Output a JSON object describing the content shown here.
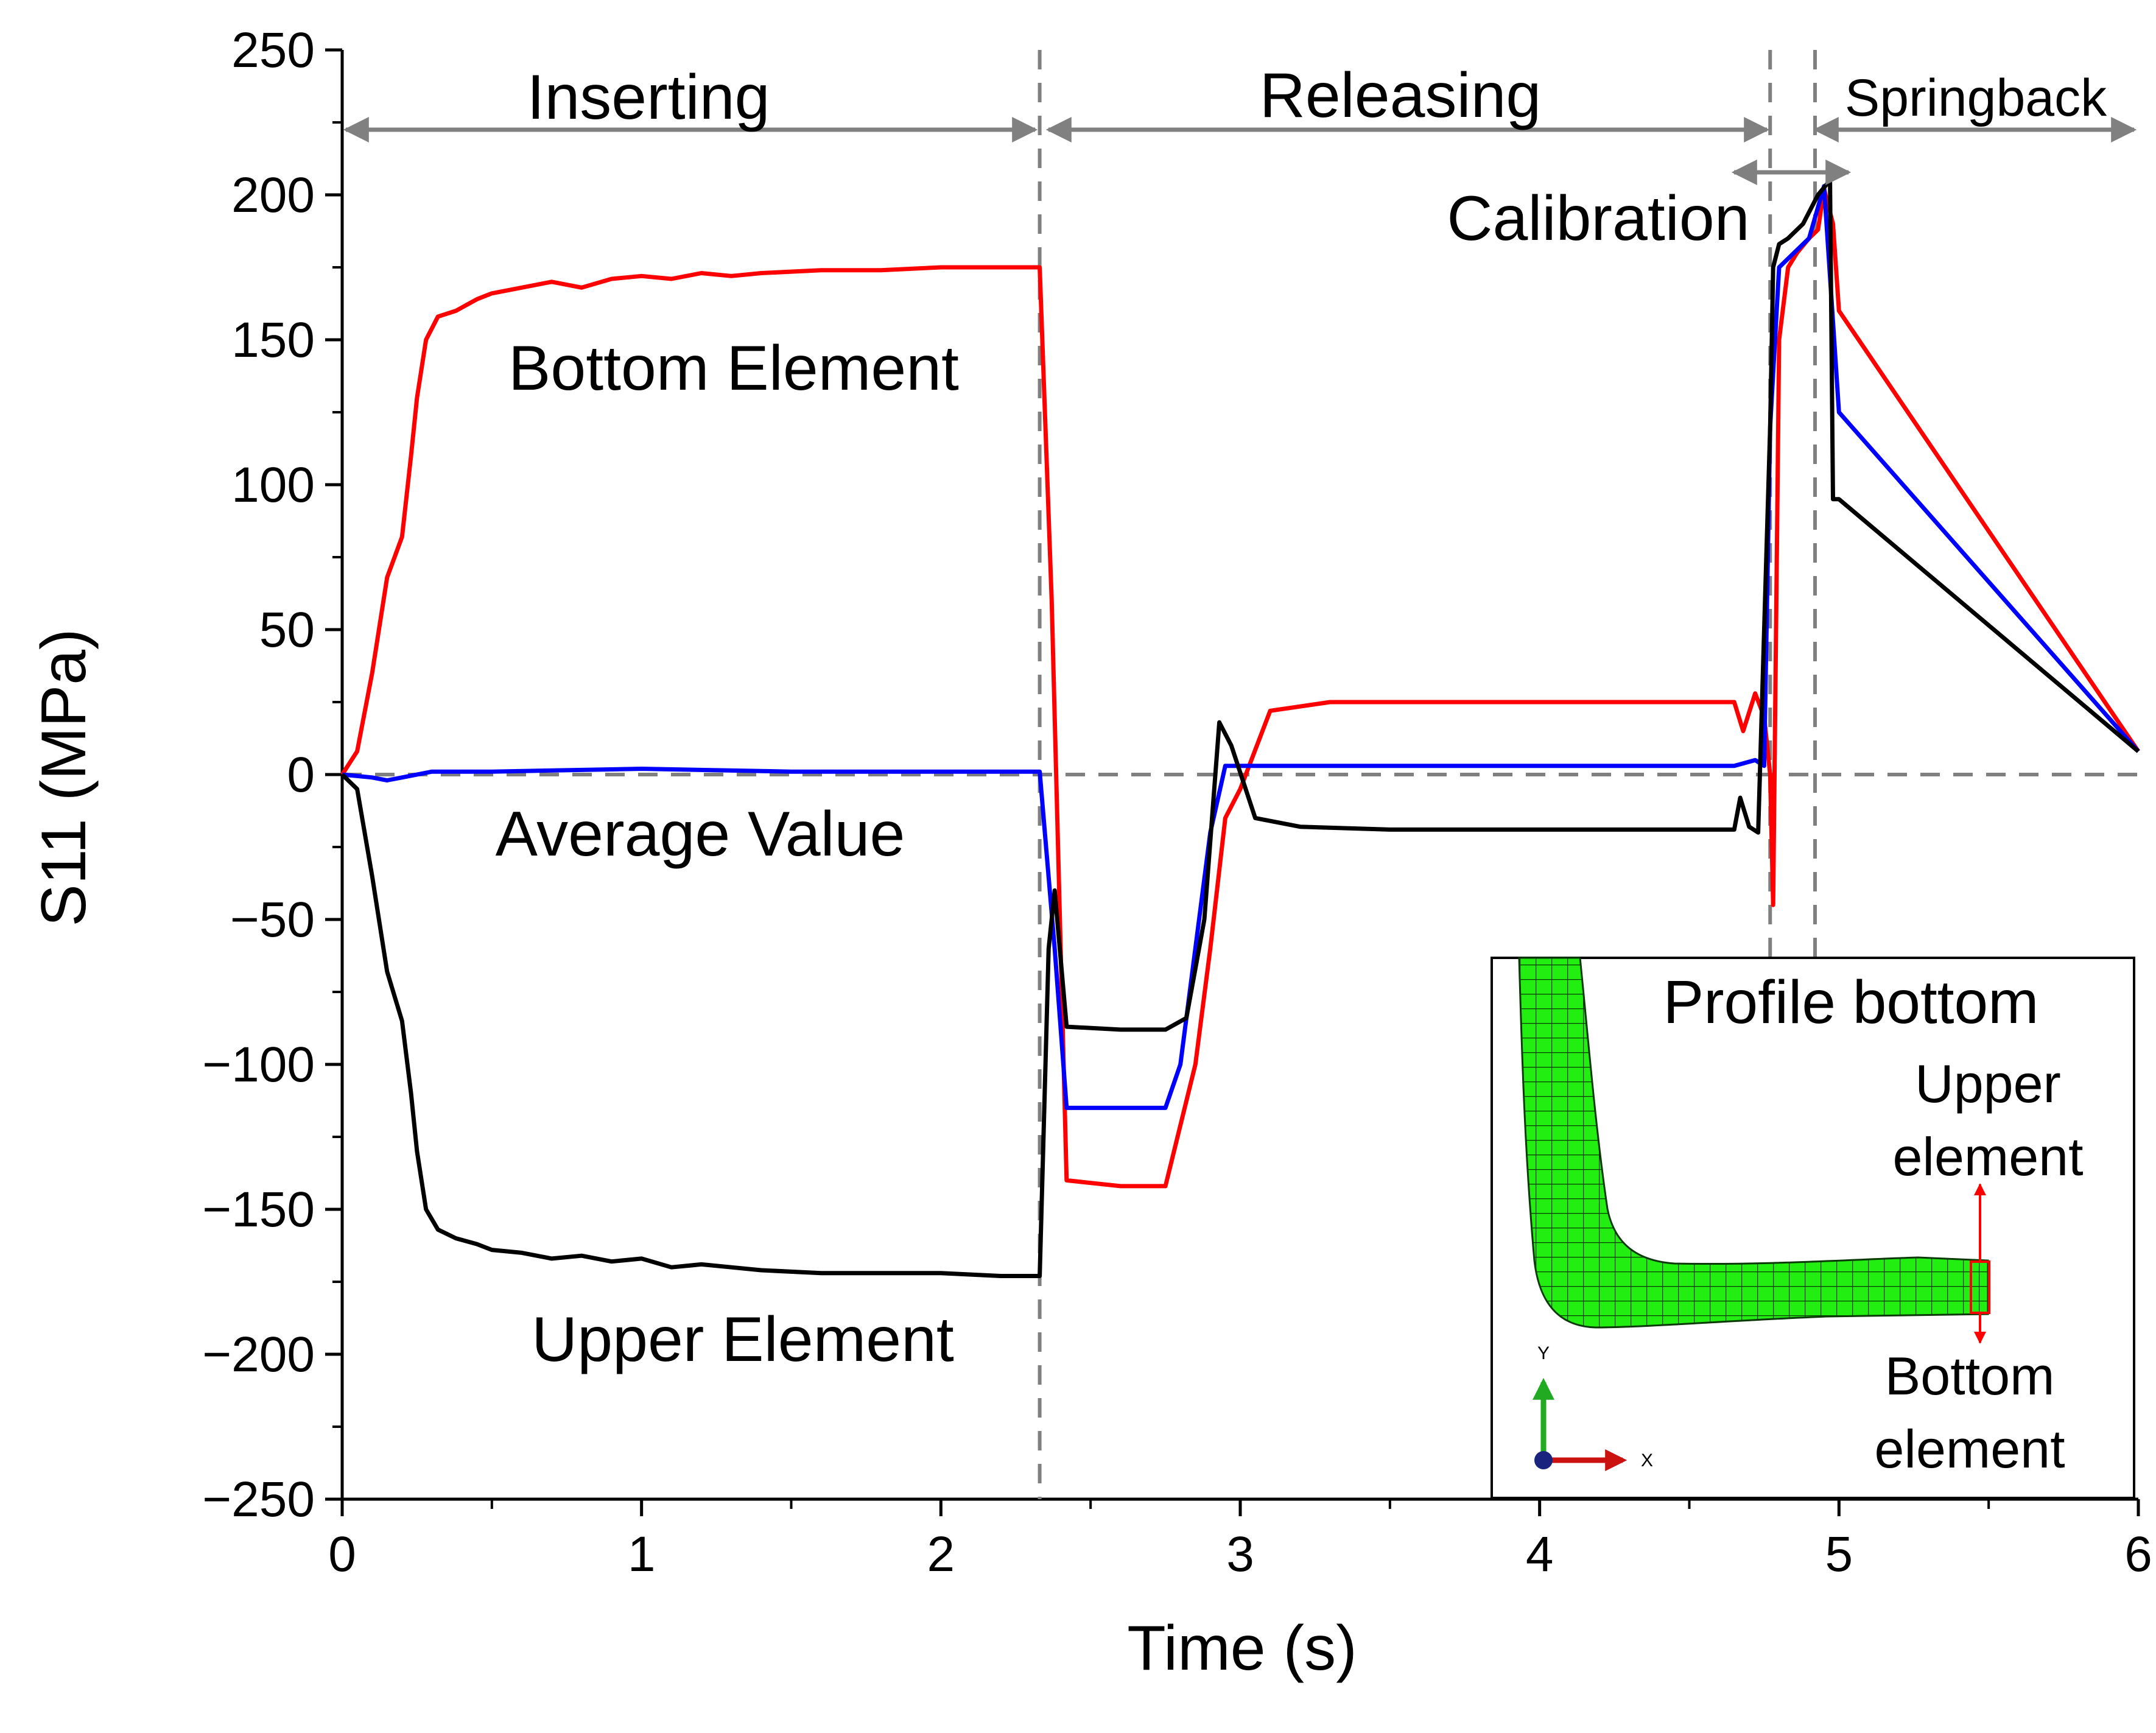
{
  "chart_data": {
    "type": "line",
    "title": "",
    "xlabel": "Time (s)",
    "ylabel": "S11 (MPa)",
    "xlim": [
      0,
      6
    ],
    "ylim": [
      -250,
      250
    ],
    "xticks": [
      "0",
      "1",
      "2",
      "3",
      "4",
      "5",
      "6"
    ],
    "yticks": [
      "250",
      "200",
      "150",
      "100",
      "50",
      "0",
      "−50",
      "−100",
      "−150",
      "−200",
      "−250"
    ],
    "phase_boundaries": [
      2.33,
      4.77,
      4.92
    ],
    "phases": [
      "Inserting",
      "Releasing",
      "Calibration",
      "Springback"
    ],
    "zero_line": 0,
    "annotations": {
      "bottom": "Bottom Element",
      "average": "Average Value",
      "upper": "Upper Element"
    },
    "series": [
      {
        "name": "Bottom Element",
        "color": "#ff0000",
        "x": [
          0,
          0.05,
          0.1,
          0.15,
          0.2,
          0.23,
          0.25,
          0.28,
          0.32,
          0.38,
          0.45,
          0.5,
          0.6,
          0.7,
          0.8,
          0.9,
          1.0,
          1.1,
          1.2,
          1.3,
          1.4,
          1.6,
          1.8,
          2.0,
          2.2,
          2.33,
          2.37,
          2.42,
          2.6,
          2.75,
          2.85,
          2.9,
          2.95,
          3.0,
          3.1,
          3.3,
          3.6,
          4.0,
          4.4,
          4.65,
          4.68,
          4.72,
          4.75,
          4.77,
          4.78,
          4.8,
          4.83,
          4.86,
          4.9,
          4.93,
          4.95,
          4.98,
          5.0,
          6.0
        ],
        "y": [
          0,
          8,
          35,
          68,
          82,
          110,
          130,
          150,
          158,
          160,
          164,
          166,
          168,
          170,
          168,
          171,
          172,
          171,
          173,
          172,
          173,
          174,
          174,
          175,
          175,
          175,
          60,
          -140,
          -142,
          -142,
          -100,
          -60,
          -15,
          -5,
          22,
          25,
          25,
          25,
          25,
          25,
          15,
          28,
          20,
          0,
          -45,
          150,
          175,
          180,
          185,
          188,
          202,
          190,
          160,
          8
        ]
      },
      {
        "name": "Average Value",
        "color": "#0000ff",
        "x": [
          0,
          0.1,
          0.15,
          0.2,
          0.3,
          0.5,
          1.0,
          1.5,
          2.0,
          2.33,
          2.38,
          2.42,
          2.6,
          2.75,
          2.8,
          2.9,
          2.95,
          3.0,
          3.5,
          4.0,
          4.6,
          4.65,
          4.72,
          4.75,
          4.77,
          4.8,
          4.85,
          4.9,
          4.95,
          5.0,
          6.0
        ],
        "y": [
          0,
          -1,
          -2,
          -1,
          1,
          1,
          2,
          1,
          1,
          1,
          -60,
          -115,
          -115,
          -115,
          -100,
          -20,
          3,
          3,
          3,
          3,
          3,
          3,
          5,
          3,
          120,
          175,
          180,
          185,
          203,
          125,
          8
        ]
      },
      {
        "name": "Upper Element",
        "color": "#000000",
        "x": [
          0,
          0.05,
          0.1,
          0.15,
          0.2,
          0.23,
          0.25,
          0.28,
          0.32,
          0.38,
          0.45,
          0.5,
          0.6,
          0.7,
          0.8,
          0.9,
          1.0,
          1.1,
          1.2,
          1.3,
          1.4,
          1.6,
          1.8,
          2.0,
          2.2,
          2.33,
          2.36,
          2.38,
          2.42,
          2.6,
          2.75,
          2.82,
          2.88,
          2.93,
          2.97,
          3.05,
          3.2,
          3.5,
          4.0,
          4.4,
          4.65,
          4.67,
          4.7,
          4.73,
          4.77,
          4.78,
          4.8,
          4.83,
          4.88,
          4.93,
          4.97,
          4.98,
          5.0,
          6.0
        ],
        "y": [
          0,
          -5,
          -35,
          -68,
          -85,
          -110,
          -130,
          -150,
          -157,
          -160,
          -162,
          -164,
          -165,
          -167,
          -166,
          -168,
          -167,
          -170,
          -169,
          -170,
          -171,
          -172,
          -172,
          -172,
          -173,
          -173,
          -60,
          -40,
          -87,
          -88,
          -88,
          -84,
          -50,
          18,
          10,
          -15,
          -18,
          -19,
          -19,
          -19,
          -19,
          -8,
          -18,
          -20,
          120,
          175,
          183,
          185,
          190,
          200,
          205,
          95,
          95,
          8
        ]
      }
    ]
  },
  "inset": {
    "title": "Profile bottom",
    "upper_label_line1": "Upper",
    "upper_label_line2": "element",
    "bottom_label_line1": "Bottom",
    "bottom_label_line2": "element",
    "axis_y_letter": "Y",
    "axis_x_letter": "X",
    "mesh_color": "#22ee11",
    "marker_color": "#ff0000"
  }
}
